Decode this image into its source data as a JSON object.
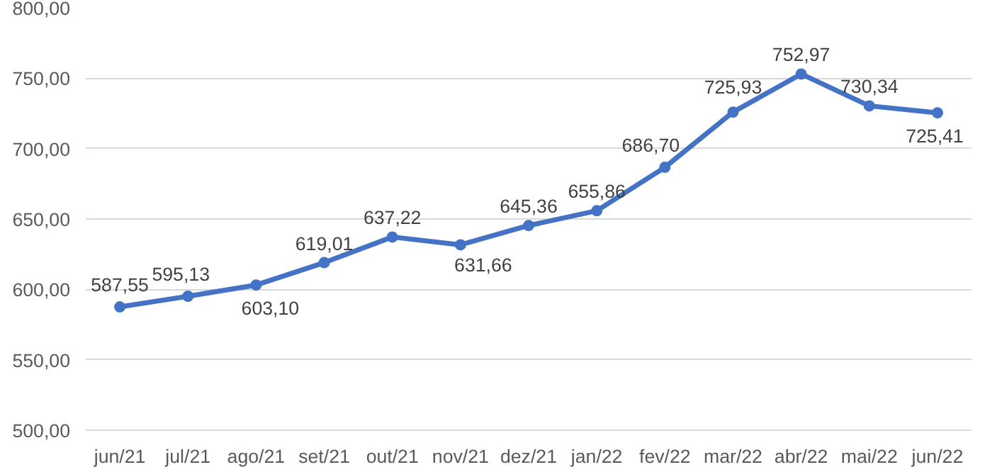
{
  "chart_data": {
    "type": "line",
    "categories": [
      "jun/21",
      "jul/21",
      "ago/21",
      "set/21",
      "out/21",
      "nov/21",
      "dez/21",
      "jan/22",
      "fev/22",
      "mar/22",
      "abr/22",
      "mai/22",
      "jun/22"
    ],
    "values": [
      587.55,
      595.13,
      603.1,
      619.01,
      637.22,
      631.66,
      645.36,
      655.86,
      686.7,
      725.93,
      752.97,
      730.34,
      725.41
    ],
    "value_labels": [
      "587,55",
      "595,13",
      "603,10",
      "619,01",
      "637,22",
      "631,66",
      "645,36",
      "655,86",
      "686,70",
      "725,93",
      "752,97",
      "730,34",
      "725,41"
    ],
    "color": "#4472c4",
    "ylim": [
      500,
      800
    ],
    "yticks": [
      {
        "value": 500,
        "label": "500,00"
      },
      {
        "value": 550,
        "label": "550,00"
      },
      {
        "value": 600,
        "label": "600,00"
      },
      {
        "value": 650,
        "label": "650,00"
      },
      {
        "value": 700,
        "label": "700,00"
      },
      {
        "value": 750,
        "label": "750,00"
      },
      {
        "value": 800,
        "label": "800,00"
      }
    ],
    "grid": "y",
    "marker": "circle",
    "line_style": "solid"
  }
}
